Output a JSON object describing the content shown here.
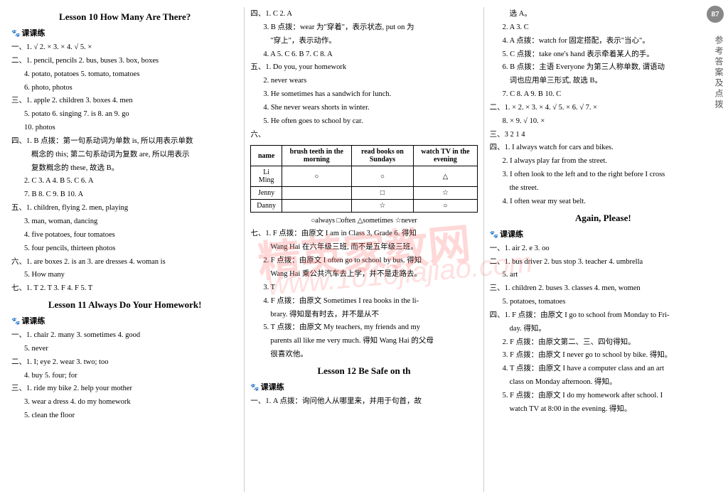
{
  "page_number": "87",
  "side_label": "参考答案及点拨",
  "watermark_main": "精英家教网",
  "watermark_url": "www.1010jiajiao.com",
  "col1": {
    "lesson10_title": "Lesson 10   How Many Are There?",
    "kkl": "课课练",
    "l1": "一、1. √  2. ×  3. ×  4. √  5. ×",
    "l2": "二、1. pencil, pencils  2. bus, buses  3. box, boxes",
    "l3": "4. potato, potatoes  5. tomato, tomatoes",
    "l4": "6. photo, photos",
    "l5": "三、1. apple  2. children  3. boxes  4. men",
    "l6": "5. potato  6. singing  7. is  8. an  9. go",
    "l7": "10. photos",
    "l8": "四、1. B  点拨：第一句系动词为单数 is, 所以用表示单数",
    "l9": "概念的 this; 第二句系动词为复数 are, 所以用表示",
    "l10": "复数概念的 these, 故选 B。",
    "l11": "2. C  3. A  4. B  5. C  6. A",
    "l12": "7. B  8. C  9. B  10. A",
    "l13": "五、1. children, flying  2. men, playing",
    "l14": "3. man, woman, dancing",
    "l15": "4. five potatoes, four tomatoes",
    "l16": "5. four pencils, thirteen photos",
    "l17": "六、1. are boxes  2. is an  3. are dresses  4. woman is",
    "l18": "5. How many",
    "l19": "七、1. T  2. T  3. F  4. F  5. T",
    "lesson11_title": "Lesson 11   Always Do Your Homework!",
    "l20": "一、1. chair  2. many  3. sometimes  4. good",
    "l21": "5. never",
    "l22": "二、1. I; eye  2. wear  3. two; too",
    "l23": "4. buy  5. four; for",
    "l24": "三、1. ride my bike  2. help your mother",
    "l25": "3. wear a dress  4. do my homework",
    "l26": "5. clean the floor"
  },
  "col2": {
    "l1": "四、1. C  2. A",
    "l2": "3. B  点拨：wear 为\"穿着\"，表示状态, put on 为",
    "l3": "\"穿上\"，表示动作。",
    "l4": "4. A  5. C  6. B  7. C  8. A",
    "l5": "五、1. Do you, your homework",
    "l6": "2. never wears",
    "l7": "3. He sometimes has a sandwich for lunch.",
    "l8": "4. She never wears shorts in winter.",
    "l9": "5. He often goes to school by car.",
    "l10": "六、",
    "table": {
      "headers": [
        "name",
        "brush teeth in the morning",
        "read books on Sundays",
        "watch TV in the evening"
      ],
      "rows": [
        [
          "Li Ming",
          "○",
          "○",
          "△"
        ],
        [
          "Jenny",
          "",
          "□",
          "☆"
        ],
        [
          "Danny",
          "",
          "☆",
          "○"
        ]
      ],
      "legend": "○always  □often  △sometimes  ☆never"
    },
    "l11": "七、1. F  点拨：由原文 I am in Class 3, Grade 6. 得知",
    "l12": "Wang Hai 在六年级三班, 而不是五年级三班。",
    "l13": "2. F  点拨：由原文 I often go to school by bus. 得知",
    "l14": "Wang Hai 乘公共汽车去上学，并不是走路去。",
    "l15": "3. T",
    "l16": "4. F  点拨：由原文 Sometimes I rea   books in the li-",
    "l17": "brary. 得知是有时去，并不是从不",
    "l18": "5. T  点拨：由原文 My teachers, my friends and my",
    "l19": "parents all like me very much. 得知 Wang Hai 的父母",
    "l20": "很喜欢他。",
    "lesson12_title": "Lesson 12   Be Safe on th",
    "l21": "一、1. A  点拨：询问他人从哪里来，并用于句首，故"
  },
  "col3": {
    "l1": "选 A。",
    "l2": "2. A  3. C",
    "l3": "4. A  点拨：watch for 固定搭配，表示\"当心\"。",
    "l4": "5. C  点拨：take one's hand 表示牵着某人的手。",
    "l5": "6. B  点拨：主语 Everyone 为第三人称单数, 谓语动",
    "l6": "词也应用单三形式, 故选 B。",
    "l7": "7. C  8. A  9. B  10. C",
    "l8": "二、1. ×  2. ×  3. ×  4. √  5. ×  6. √  7. ×",
    "l9": "8. ×  9. √  10. ×",
    "l10": "三、3 2 1 4",
    "l11": "四、1. I always watch for cars and bikes.",
    "l12": "2. I always play far from the street.",
    "l13": "3. I often look to the left and to the right before I cross",
    "l14": "the street.",
    "l15": "4. I often wear my seat belt.",
    "again_title": "Again, Please!",
    "l16": "一、1. air  2. e  3. oo",
    "l17": "二、1. bus driver  2. bus stop  3. teacher  4. umbrella",
    "l18": "5. art",
    "l19": "三、1. children  2. buses  3. classes  4. men, women",
    "l20": "5. potatoes, tomatoes",
    "l21": "四、1. F  点拨：由原文 I go to school from Monday to Fri-",
    "l22": "day. 得知。",
    "l23": "2. F  点拨：由原文第二、三、四句得知。",
    "l24": "3. F  点拨：由原文 I never go to school by bike. 得知。",
    "l25": "4. T  点拨：由原文 I have a computer class and an art",
    "l26": "class on Monday afternoon. 得知。",
    "l27": "5. F  点拨：由原文 I do my homework after school. I",
    "l28": "watch TV at 8:00 in the evening. 得知。"
  }
}
